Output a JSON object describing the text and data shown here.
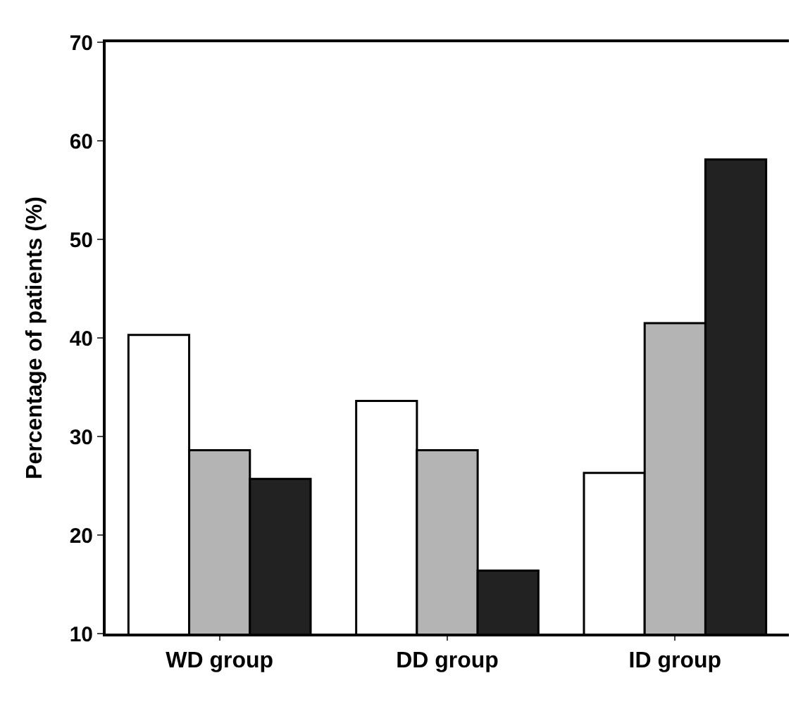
{
  "chart_data": {
    "type": "bar",
    "ylabel": "Percentage of patients (%)",
    "categories": [
      "WD group",
      "DD group",
      "ID group"
    ],
    "series": [
      {
        "color": "#ffffff",
        "values": [
          40.3,
          33.6,
          26.3
        ]
      },
      {
        "color": "#b4b4b4",
        "values": [
          28.6,
          28.6,
          41.5
        ]
      },
      {
        "color": "#222222",
        "values": [
          25.7,
          16.4,
          58.1
        ]
      }
    ],
    "ylim": [
      10,
      70
    ],
    "yticks": [
      10,
      20,
      30,
      40,
      50,
      60,
      70
    ]
  }
}
